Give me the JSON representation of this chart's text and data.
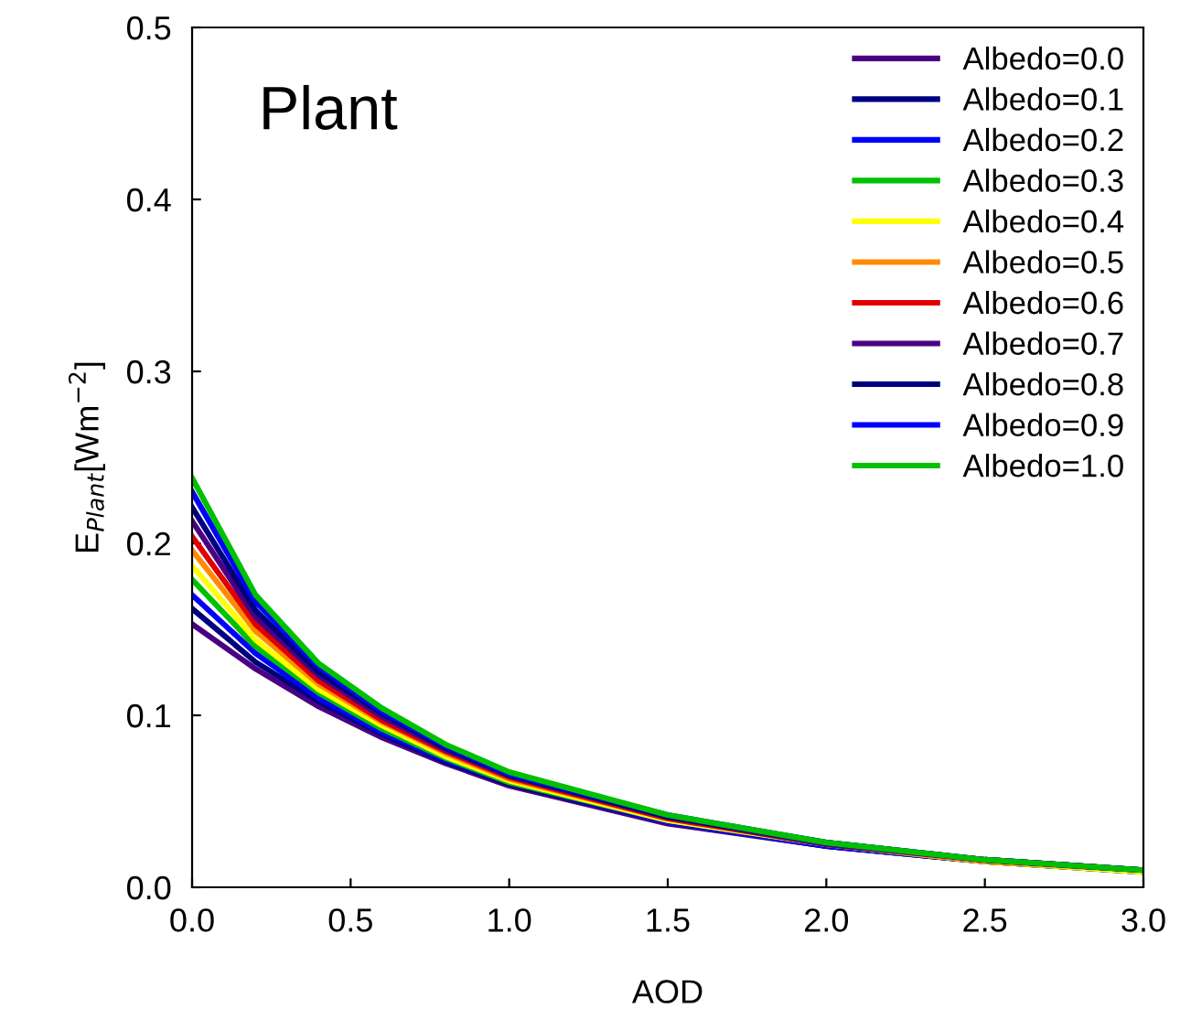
{
  "chart_data": {
    "type": "line",
    "xlabel": "AOD",
    "ylabel": "E$_{Plant}$[Wm$^{−2}$]",
    "annotations": [
      "Plant"
    ],
    "x": [
      0,
      0.2,
      0.4,
      0.6,
      0.8,
      1.0,
      1.5,
      2.0,
      2.5,
      3.0
    ],
    "xlim": [
      0,
      3
    ],
    "xticks": [
      {
        "value": 0,
        "label": "0.0"
      },
      0.5,
      {
        "value": 1,
        "label": "1.0"
      },
      1.5,
      {
        "value": 2,
        "label": "2.0"
      },
      2.5,
      {
        "value": 3,
        "label": "3.0"
      }
    ],
    "ylim": [
      0,
      0.5
    ],
    "yticks": [
      {
        "value": 0,
        "label": "0.0"
      },
      0.1,
      0.2,
      0.3,
      0.4,
      0.5
    ],
    "grid": false,
    "legend": "top right",
    "marker": "none",
    "line_style": "solid",
    "series": [
      {
        "name": "Albedo=0.0",
        "color": "#4b0082",
        "values": [
          0.153,
          0.127,
          0.105,
          0.087,
          0.072,
          0.059,
          0.037,
          0.024,
          0.015,
          0.009
        ]
      },
      {
        "name": "Albedo=0.1",
        "color": "#00007f",
        "values": [
          0.162,
          0.131,
          0.108,
          0.089,
          0.073,
          0.06,
          0.038,
          0.024,
          0.015,
          0.009
        ]
      },
      {
        "name": "Albedo=0.2",
        "color": "#0000ff",
        "values": [
          0.17,
          0.136,
          0.11,
          0.09,
          0.074,
          0.061,
          0.038,
          0.024,
          0.015,
          0.009
        ]
      },
      {
        "name": "Albedo=0.3",
        "color": "#00c000",
        "values": [
          0.179,
          0.14,
          0.113,
          0.092,
          0.075,
          0.061,
          0.039,
          0.025,
          0.015,
          0.009
        ]
      },
      {
        "name": "Albedo=0.4",
        "color": "#ffff00",
        "values": [
          0.187,
          0.144,
          0.115,
          0.094,
          0.076,
          0.062,
          0.039,
          0.025,
          0.015,
          0.009
        ]
      },
      {
        "name": "Albedo=0.5",
        "color": "#ff8c00",
        "values": [
          0.196,
          0.149,
          0.118,
          0.096,
          0.078,
          0.063,
          0.04,
          0.025,
          0.015,
          0.01
        ]
      },
      {
        "name": "Albedo=0.6",
        "color": "#e00000",
        "values": [
          0.204,
          0.153,
          0.12,
          0.097,
          0.079,
          0.064,
          0.04,
          0.025,
          0.016,
          0.01
        ]
      },
      {
        "name": "Albedo=0.7",
        "color": "#4b0082",
        "values": [
          0.213,
          0.157,
          0.123,
          0.099,
          0.08,
          0.065,
          0.041,
          0.025,
          0.016,
          0.01
        ]
      },
      {
        "name": "Albedo=0.8",
        "color": "#00007f",
        "values": [
          0.221,
          0.161,
          0.125,
          0.101,
          0.081,
          0.065,
          0.041,
          0.026,
          0.016,
          0.01
        ]
      },
      {
        "name": "Albedo=0.9",
        "color": "#0000ff",
        "values": [
          0.23,
          0.166,
          0.128,
          0.102,
          0.082,
          0.066,
          0.042,
          0.026,
          0.016,
          0.01
        ]
      },
      {
        "name": "Albedo=1.0",
        "color": "#00c000",
        "values": [
          0.238,
          0.17,
          0.13,
          0.104,
          0.083,
          0.067,
          0.042,
          0.026,
          0.016,
          0.01
        ]
      }
    ]
  }
}
